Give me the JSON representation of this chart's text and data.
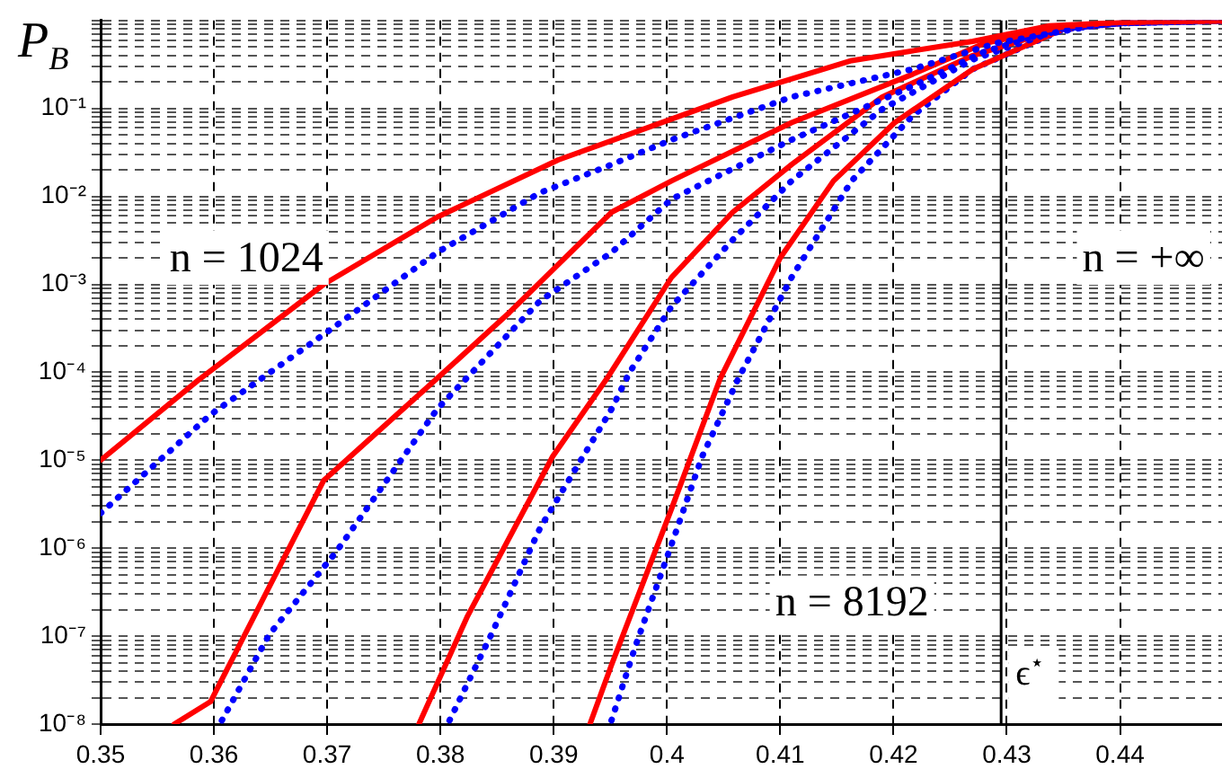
{
  "chart_data": {
    "type": "line",
    "ylabel": "P$_{B}$",
    "log": "y",
    "grid": true,
    "legend": false,
    "marker": "none",
    "xlim": [
      0.35,
      0.449
    ],
    "xticks": [
      0.35,
      0.36,
      0.37,
      0.38,
      0.39,
      0.4,
      0.41,
      0.42,
      0.43,
      0.44
    ],
    "ylim": [
      1e-08,
      1
    ],
    "yticks": [
      {
        "value": 1e-08,
        "label": "10⁻⁸"
      },
      {
        "value": 2e-08,
        "label": null
      },
      {
        "value": 3e-08,
        "label": null
      },
      {
        "value": 4e-08,
        "label": null
      },
      {
        "value": 5e-08,
        "label": null
      },
      {
        "value": 6e-08,
        "label": null
      },
      {
        "value": 7e-08,
        "label": null
      },
      {
        "value": 8e-08,
        "label": null
      },
      {
        "value": 9e-08,
        "label": null
      },
      {
        "value": 1e-07,
        "label": "10⁻⁷"
      },
      {
        "value": 2e-07,
        "label": null
      },
      {
        "value": 3e-07,
        "label": null
      },
      {
        "value": 4e-07,
        "label": null
      },
      {
        "value": 5e-07,
        "label": null
      },
      {
        "value": 6e-07,
        "label": null
      },
      {
        "value": 7e-07,
        "label": null
      },
      {
        "value": 8e-07,
        "label": null
      },
      {
        "value": 9e-07,
        "label": null
      },
      {
        "value": 1e-06,
        "label": "10⁻⁶"
      },
      {
        "value": 2e-06,
        "label": null
      },
      {
        "value": 3e-06,
        "label": null
      },
      {
        "value": 4e-06,
        "label": null
      },
      {
        "value": 5e-06,
        "label": null
      },
      {
        "value": 6e-06,
        "label": null
      },
      {
        "value": 7e-06,
        "label": null
      },
      {
        "value": 8e-06,
        "label": null
      },
      {
        "value": 9e-06,
        "label": null
      },
      {
        "value": 1e-05,
        "label": "10⁻⁵"
      },
      {
        "value": 2e-05,
        "label": null
      },
      {
        "value": 3e-05,
        "label": null
      },
      {
        "value": 4e-05,
        "label": null
      },
      {
        "value": 5e-05,
        "label": null
      },
      {
        "value": 6e-05,
        "label": null
      },
      {
        "value": 7e-05,
        "label": null
      },
      {
        "value": 8e-05,
        "label": null
      },
      {
        "value": 9e-05,
        "label": null
      },
      {
        "value": 0.0001,
        "label": "10⁻⁴"
      },
      {
        "value": 0.0002,
        "label": null
      },
      {
        "value": 0.0003,
        "label": null
      },
      {
        "value": 0.0004,
        "label": null
      },
      {
        "value": 0.0005,
        "label": null
      },
      {
        "value": 0.0006,
        "label": null
      },
      {
        "value": 0.0007,
        "label": null
      },
      {
        "value": 0.0008,
        "label": null
      },
      {
        "value": 0.0009,
        "label": null
      },
      {
        "value": 0.001,
        "label": "10⁻³"
      },
      {
        "value": 0.002,
        "label": null
      },
      {
        "value": 0.003,
        "label": null
      },
      {
        "value": 0.004,
        "label": null
      },
      {
        "value": 0.005,
        "label": null
      },
      {
        "value": 0.006,
        "label": null
      },
      {
        "value": 0.007,
        "label": null
      },
      {
        "value": 0.008,
        "label": null
      },
      {
        "value": 0.009,
        "label": null
      },
      {
        "value": 0.01,
        "label": "10⁻²"
      },
      {
        "value": 0.02,
        "label": null
      },
      {
        "value": 0.03,
        "label": null
      },
      {
        "value": 0.04,
        "label": null
      },
      {
        "value": 0.05,
        "label": null
      },
      {
        "value": 0.06,
        "label": null
      },
      {
        "value": 0.07,
        "label": null
      },
      {
        "value": 0.08,
        "label": null
      },
      {
        "value": 0.09,
        "label": null
      },
      {
        "value": 0.1,
        "label": "10⁻¹"
      },
      {
        "value": 0.2,
        "label": null
      },
      {
        "value": 0.3,
        "label": null
      },
      {
        "value": 0.4,
        "label": null
      },
      {
        "value": 0.5,
        "label": null
      },
      {
        "value": 0.6,
        "label": null
      },
      {
        "value": 0.7,
        "label": null
      },
      {
        "value": 0.8,
        "label": null
      },
      {
        "value": 0.9,
        "label": null
      },
      {
        "value": 1,
        "label": null
      }
    ],
    "series": [
      {
        "color": "#ff0000",
        "line_style": "solid",
        "x": [
          0.35,
          0.3586,
          0.3697,
          0.3797,
          0.3904,
          0.4058,
          0.4163,
          0.427,
          0.4338,
          0.44,
          0.449
        ],
        "values": [
          1e-05,
          8.1e-05,
          0.001,
          0.0058,
          0.026,
          0.135,
          0.35,
          0.58,
          0.87,
          0.95,
          0.99
        ]
      },
      {
        "color": "#0000ff",
        "line_style": "dotted",
        "x": [
          0.35,
          0.3597,
          0.3702,
          0.3797,
          0.3888,
          0.3951,
          0.4004,
          0.411,
          0.4217,
          0.429,
          0.4376,
          0.44,
          0.449
        ],
        "values": [
          2.5e-06,
          3.3e-05,
          0.0003,
          0.0023,
          0.011,
          0.023,
          0.044,
          0.135,
          0.28,
          0.55,
          0.87,
          0.93,
          0.99
        ]
      },
      {
        "color": "#ff0000",
        "line_style": "solid",
        "x": [
          0.3565,
          0.3597,
          0.3697,
          0.3797,
          0.3861,
          0.3951,
          0.4004,
          0.411,
          0.4217,
          0.428,
          0.435,
          0.44,
          0.449
        ],
        "values": [
          1e-08,
          1.8e-08,
          5.9e-06,
          8.5e-05,
          0.00048,
          0.0066,
          0.015,
          0.069,
          0.245,
          0.55,
          0.85,
          0.95,
          0.99
        ]
      },
      {
        "color": "#0000ff",
        "line_style": "dotted",
        "x": [
          0.3607,
          0.3649,
          0.3708,
          0.3797,
          0.3888,
          0.3951,
          0.4004,
          0.411,
          0.4217,
          0.428,
          0.435,
          0.44,
          0.449
        ],
        "values": [
          1.1e-08,
          1.05e-07,
          9.1e-07,
          3.8e-05,
          0.00065,
          0.0023,
          0.0093,
          0.044,
          0.18,
          0.44,
          0.83,
          0.93,
          0.99
        ]
      },
      {
        "color": "#ff0000",
        "line_style": "solid",
        "x": [
          0.3781,
          0.3824,
          0.3899,
          0.3947,
          0.4004,
          0.4058,
          0.411,
          0.419,
          0.427,
          0.435,
          0.44,
          0.449
        ],
        "values": [
          1e-08,
          1.7e-07,
          1.1e-05,
          8.5e-05,
          0.0012,
          0.0066,
          0.023,
          0.135,
          0.4,
          0.83,
          0.93,
          0.99
        ]
      },
      {
        "color": "#0000ff",
        "line_style": "dotted",
        "x": [
          0.3808,
          0.3845,
          0.3888,
          0.3951,
          0.3967,
          0.4004,
          0.4058,
          0.411,
          0.419,
          0.427,
          0.435,
          0.44,
          0.449
        ],
        "values": [
          1.1e-08,
          1.05e-07,
          1.7e-06,
          3.8e-05,
          0.0001,
          0.00056,
          0.0032,
          0.015,
          0.098,
          0.36,
          0.81,
          0.93,
          0.99
        ]
      },
      {
        "color": "#ff0000",
        "line_style": "solid",
        "x": [
          0.3932,
          0.3951,
          0.4004,
          0.4047,
          0.41,
          0.4147,
          0.4201,
          0.427,
          0.435,
          0.44,
          0.449
        ],
        "values": [
          1e-08,
          4.7e-08,
          2.8e-06,
          8.5e-05,
          0.002,
          0.015,
          0.069,
          0.28,
          0.8,
          0.93,
          0.99
        ]
      },
      {
        "color": "#0000ff",
        "line_style": "dotted",
        "x": [
          0.3951,
          0.3972,
          0.4004,
          0.4031,
          0.4063,
          0.411,
          0.4163,
          0.4217,
          0.427,
          0.435,
          0.44,
          0.449
        ],
        "values": [
          1.1e-08,
          7.6e-08,
          1.1e-06,
          1.1e-05,
          8.5e-05,
          0.0012,
          0.015,
          0.083,
          0.28,
          0.79,
          0.93,
          0.99
        ]
      }
    ],
    "ref_lines": [
      {
        "axis": "x",
        "value": 0.4295,
        "label": "ϵ$^{⋆}$",
        "color": "#000000"
      }
    ],
    "annotations": [
      "n = 1024",
      "n = 8192",
      "n = +∞"
    ]
  }
}
